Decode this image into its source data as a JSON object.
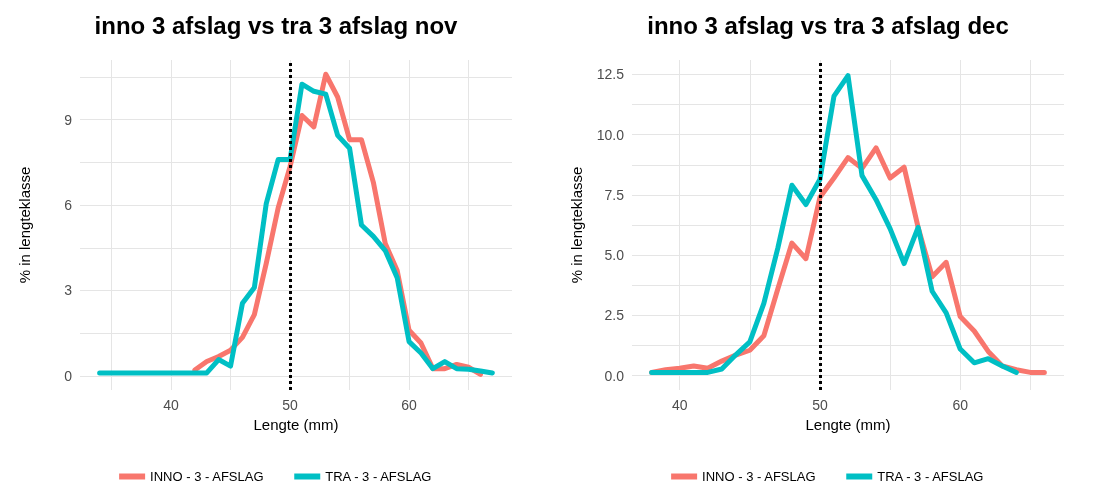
{
  "chart_data": [
    {
      "type": "line",
      "title": "inno 3 afslag vs tra 3 afslag nov",
      "xlabel": "Lengte (mm)",
      "ylabel": "% in lengteklasse",
      "xlim": [
        32.35,
        68.65
      ],
      "xticks": [
        {
          "value": 35,
          "label": null
        },
        40,
        {
          "value": 45,
          "label": null
        },
        50,
        {
          "value": 55,
          "label": null
        },
        60,
        {
          "value": 65,
          "label": null
        }
      ],
      "ylim": [
        -0.5,
        11.1
      ],
      "yticks": [
        0,
        {
          "value": 1.5,
          "label": null
        },
        3,
        {
          "value": 4.5,
          "label": null
        },
        6,
        {
          "value": 7.5,
          "label": null
        },
        9,
        {
          "value": 10.5,
          "label": null
        }
      ],
      "grid": true,
      "legend": "bottom",
      "marker": "none",
      "line_style": "solid",
      "ref_lines": [
        {
          "axis": "x",
          "value": 50,
          "color": "#000000",
          "line_style": "dotted"
        }
      ],
      "series": [
        {
          "name": "INNO - 3 - AFSLAG",
          "color": "#f8766d",
          "x": [
            42,
            43,
            44,
            45,
            46,
            47,
            48,
            49,
            50,
            51,
            52,
            53,
            54,
            55,
            56,
            57,
            58,
            59,
            60,
            61,
            62,
            63,
            64,
            65,
            66
          ],
          "values": [
            0.2,
            0.5,
            0.68,
            0.9,
            1.35,
            2.15,
            3.95,
            5.9,
            7.35,
            9.15,
            8.75,
            10.6,
            9.8,
            8.3,
            8.3,
            6.8,
            4.65,
            3.7,
            1.6,
            1.15,
            0.25,
            0.25,
            0.4,
            0.3,
            0.05
          ]
        },
        {
          "name": "TRA - 3 - AFSLAG",
          "color": "#00bfc4",
          "x": [
            34,
            35,
            36,
            37,
            38,
            39,
            40,
            41,
            42,
            43,
            44,
            45,
            46,
            47,
            48,
            49,
            50,
            51,
            52,
            53,
            54,
            55,
            56,
            57,
            58,
            59,
            60,
            61,
            62,
            63,
            64,
            65,
            66,
            67
          ],
          "values": [
            0.1,
            0.1,
            0.1,
            0.1,
            0.1,
            0.1,
            0.1,
            0.1,
            0.1,
            0.1,
            0.57,
            0.34,
            2.55,
            3.1,
            6.05,
            7.6,
            7.6,
            10.25,
            10.0,
            9.9,
            8.45,
            8.0,
            5.3,
            4.9,
            4.4,
            3.45,
            1.2,
            0.8,
            0.25,
            0.5,
            0.25,
            0.23,
            0.17,
            0.1
          ]
        }
      ]
    },
    {
      "type": "line",
      "title": "inno 3 afslag vs tra 3 afslag dec",
      "xlabel": "Lengte (mm)",
      "ylabel": "% in lengteklasse",
      "xlim": [
        36.6,
        67.4
      ],
      "xticks": [
        40,
        {
          "value": 45,
          "label": null
        },
        50,
        {
          "value": 55,
          "label": null
        },
        60,
        {
          "value": 65,
          "label": null
        }
      ],
      "ylim": [
        -0.6,
        13.1
      ],
      "yticks": [
        {
          "value": 0,
          "label": "0.0"
        },
        {
          "value": 1.25,
          "label": null
        },
        2.5,
        {
          "value": 3.75,
          "label": null
        },
        {
          "value": 5,
          "label": "5.0"
        },
        {
          "value": 6.25,
          "label": null
        },
        7.5,
        {
          "value": 8.75,
          "label": null
        },
        {
          "value": 10,
          "label": "10.0"
        },
        {
          "value": 11.25,
          "label": null
        },
        12.5
      ],
      "grid": true,
      "legend": "bottom",
      "marker": "none",
      "line_style": "solid",
      "ref_lines": [
        {
          "axis": "x",
          "value": 50,
          "color": "#000000",
          "line_style": "dotted"
        }
      ],
      "series": [
        {
          "name": "INNO - 3 - AFSLAG",
          "color": "#f8766d",
          "x": [
            38,
            39,
            40,
            41,
            42,
            43,
            44,
            45,
            46,
            47,
            48,
            49,
            50,
            51,
            52,
            53,
            54,
            55,
            56,
            57,
            58,
            59,
            60,
            61,
            62,
            63,
            64,
            65,
            66
          ],
          "values": [
            0.13,
            0.24,
            0.3,
            0.4,
            0.3,
            0.6,
            0.85,
            1.05,
            1.65,
            3.6,
            5.5,
            4.85,
            7.4,
            8.2,
            9.05,
            8.6,
            9.45,
            8.2,
            8.65,
            6.15,
            4.1,
            4.7,
            2.45,
            1.85,
            1.0,
            0.4,
            0.24,
            0.13,
            0.13
          ]
        },
        {
          "name": "TRA - 3 - AFSLAG",
          "color": "#00bfc4",
          "x": [
            38,
            39,
            40,
            41,
            42,
            43,
            44,
            45,
            46,
            47,
            48,
            49,
            50,
            51,
            52,
            53,
            54,
            55,
            56,
            57,
            58,
            59,
            60,
            61,
            62,
            63,
            64
          ],
          "values": [
            0.13,
            0.13,
            0.13,
            0.13,
            0.13,
            0.27,
            0.86,
            1.4,
            3.0,
            5.3,
            7.9,
            7.1,
            8.15,
            11.6,
            12.45,
            8.3,
            7.3,
            6.1,
            4.65,
            6.15,
            3.5,
            2.6,
            1.1,
            0.53,
            0.7,
            0.4,
            0.13
          ]
        }
      ]
    }
  ]
}
